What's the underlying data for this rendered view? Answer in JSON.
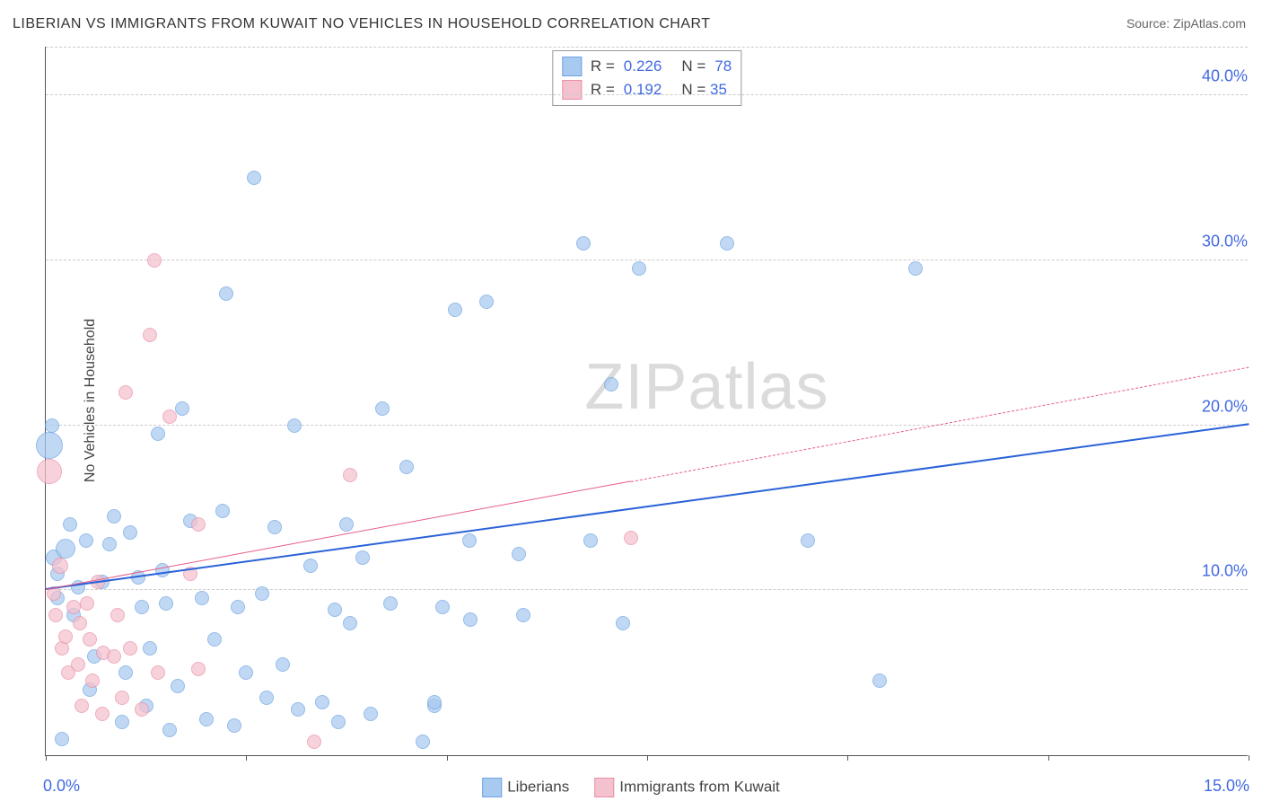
{
  "title": "LIBERIAN VS IMMIGRANTS FROM KUWAIT NO VEHICLES IN HOUSEHOLD CORRELATION CHART",
  "source_prefix": "Source: ",
  "source_name": "ZipAtlas.com",
  "yaxis_label": "No Vehicles in Household",
  "watermark_a": "ZIP",
  "watermark_b": "atlas",
  "chart": {
    "type": "scatter",
    "xlim": [
      0,
      15
    ],
    "ylim": [
      0,
      43
    ],
    "yticks": [
      10,
      20,
      30,
      40
    ],
    "ytick_labels": [
      "10.0%",
      "20.0%",
      "30.0%",
      "40.0%"
    ],
    "xticks": [
      0,
      2.5,
      5,
      7.5,
      10,
      12.5,
      15
    ],
    "x_start_label": "0.0%",
    "x_end_label": "15.0%",
    "grid_color": "#cccccc",
    "axis_color": "#555555",
    "background_color": "#ffffff",
    "series": [
      {
        "name": "Liberians",
        "fill": "#a8caf0",
        "stroke": "#6ea3e0",
        "line_color": "#2a62d8",
        "line_width": 2.4,
        "opacity": 0.72,
        "R": "0.226",
        "N": "78",
        "regression": {
          "x1": 0,
          "y1": 10,
          "x2": 15,
          "y2": 20,
          "solid_until_x": 15
        },
        "points": [
          {
            "x": 0.05,
            "y": 18.8,
            "r": 15
          },
          {
            "x": 0.08,
            "y": 20.0,
            "r": 8
          },
          {
            "x": 0.1,
            "y": 12.0,
            "r": 9
          },
          {
            "x": 0.15,
            "y": 11.0,
            "r": 8
          },
          {
            "x": 0.15,
            "y": 9.5,
            "r": 8
          },
          {
            "x": 0.2,
            "y": 1.0,
            "r": 8
          },
          {
            "x": 0.25,
            "y": 12.5,
            "r": 11
          },
          {
            "x": 0.3,
            "y": 14.0,
            "r": 8
          },
          {
            "x": 0.35,
            "y": 8.5,
            "r": 8
          },
          {
            "x": 0.4,
            "y": 10.2,
            "r": 8
          },
          {
            "x": 0.5,
            "y": 13.0,
            "r": 8
          },
          {
            "x": 0.55,
            "y": 4.0,
            "r": 8
          },
          {
            "x": 0.6,
            "y": 6.0,
            "r": 8
          },
          {
            "x": 0.7,
            "y": 10.5,
            "r": 8
          },
          {
            "x": 0.8,
            "y": 12.8,
            "r": 8
          },
          {
            "x": 0.85,
            "y": 14.5,
            "r": 8
          },
          {
            "x": 0.95,
            "y": 2.0,
            "r": 8
          },
          {
            "x": 1.0,
            "y": 5.0,
            "r": 8
          },
          {
            "x": 1.05,
            "y": 13.5,
            "r": 8
          },
          {
            "x": 1.15,
            "y": 10.8,
            "r": 8
          },
          {
            "x": 1.2,
            "y": 9.0,
            "r": 8
          },
          {
            "x": 1.25,
            "y": 3.0,
            "r": 8
          },
          {
            "x": 1.3,
            "y": 6.5,
            "r": 8
          },
          {
            "x": 1.4,
            "y": 19.5,
            "r": 8
          },
          {
            "x": 1.45,
            "y": 11.2,
            "r": 8
          },
          {
            "x": 1.5,
            "y": 9.2,
            "r": 8
          },
          {
            "x": 1.55,
            "y": 1.5,
            "r": 8
          },
          {
            "x": 1.65,
            "y": 4.2,
            "r": 8
          },
          {
            "x": 1.7,
            "y": 21.0,
            "r": 8
          },
          {
            "x": 1.8,
            "y": 14.2,
            "r": 8
          },
          {
            "x": 1.95,
            "y": 9.5,
            "r": 8
          },
          {
            "x": 2.0,
            "y": 2.2,
            "r": 8
          },
          {
            "x": 2.1,
            "y": 7.0,
            "r": 8
          },
          {
            "x": 2.2,
            "y": 14.8,
            "r": 8
          },
          {
            "x": 2.25,
            "y": 28.0,
            "r": 8
          },
          {
            "x": 2.35,
            "y": 1.8,
            "r": 8
          },
          {
            "x": 2.4,
            "y": 9.0,
            "r": 8
          },
          {
            "x": 2.5,
            "y": 5.0,
            "r": 8
          },
          {
            "x": 2.6,
            "y": 35.0,
            "r": 8
          },
          {
            "x": 2.7,
            "y": 9.8,
            "r": 8
          },
          {
            "x": 2.75,
            "y": 3.5,
            "r": 8
          },
          {
            "x": 2.85,
            "y": 13.8,
            "r": 8
          },
          {
            "x": 2.95,
            "y": 5.5,
            "r": 8
          },
          {
            "x": 3.1,
            "y": 20.0,
            "r": 8
          },
          {
            "x": 3.15,
            "y": 2.8,
            "r": 8
          },
          {
            "x": 3.3,
            "y": 11.5,
            "r": 8
          },
          {
            "x": 3.45,
            "y": 3.2,
            "r": 8
          },
          {
            "x": 3.6,
            "y": 8.8,
            "r": 8
          },
          {
            "x": 3.65,
            "y": 2.0,
            "r": 8
          },
          {
            "x": 3.75,
            "y": 14.0,
            "r": 8
          },
          {
            "x": 3.8,
            "y": 8.0,
            "r": 8
          },
          {
            "x": 3.95,
            "y": 12.0,
            "r": 8
          },
          {
            "x": 4.05,
            "y": 2.5,
            "r": 8
          },
          {
            "x": 4.2,
            "y": 21.0,
            "r": 8
          },
          {
            "x": 4.3,
            "y": 9.2,
            "r": 8
          },
          {
            "x": 4.5,
            "y": 17.5,
            "r": 8
          },
          {
            "x": 4.7,
            "y": 0.8,
            "r": 8
          },
          {
            "x": 4.85,
            "y": 3.0,
            "r": 8
          },
          {
            "x": 4.85,
            "y": 3.2,
            "r": 8
          },
          {
            "x": 4.95,
            "y": 9.0,
            "r": 8
          },
          {
            "x": 5.1,
            "y": 27.0,
            "r": 8
          },
          {
            "x": 5.28,
            "y": 13.0,
            "r": 8
          },
          {
            "x": 5.3,
            "y": 8.2,
            "r": 8
          },
          {
            "x": 5.5,
            "y": 27.5,
            "r": 8
          },
          {
            "x": 5.9,
            "y": 12.2,
            "r": 8
          },
          {
            "x": 5.95,
            "y": 8.5,
            "r": 8
          },
          {
            "x": 6.7,
            "y": 31.0,
            "r": 8
          },
          {
            "x": 6.8,
            "y": 13.0,
            "r": 8
          },
          {
            "x": 7.05,
            "y": 22.5,
            "r": 8
          },
          {
            "x": 7.2,
            "y": 8.0,
            "r": 8
          },
          {
            "x": 7.4,
            "y": 29.5,
            "r": 8
          },
          {
            "x": 8.5,
            "y": 31.0,
            "r": 8
          },
          {
            "x": 9.5,
            "y": 13.0,
            "r": 8
          },
          {
            "x": 10.4,
            "y": 4.5,
            "r": 8
          },
          {
            "x": 10.85,
            "y": 29.5,
            "r": 8
          }
        ]
      },
      {
        "name": "Immigrants from Kuwait",
        "fill": "#f4c1ce",
        "stroke": "#e98fa8",
        "line_color": "#e75d86",
        "line_width": 1.8,
        "opacity": 0.72,
        "R": "0.192",
        "N": "35",
        "regression": {
          "x1": 0,
          "y1": 10,
          "x2": 15,
          "y2": 23.5,
          "solid_until_x": 7.3
        },
        "points": [
          {
            "x": 0.05,
            "y": 17.2,
            "r": 14
          },
          {
            "x": 0.1,
            "y": 9.8,
            "r": 8
          },
          {
            "x": 0.12,
            "y": 8.5,
            "r": 8
          },
          {
            "x": 0.18,
            "y": 11.5,
            "r": 9
          },
          {
            "x": 0.2,
            "y": 6.5,
            "r": 8
          },
          {
            "x": 0.25,
            "y": 7.2,
            "r": 8
          },
          {
            "x": 0.28,
            "y": 5.0,
            "r": 8
          },
          {
            "x": 0.35,
            "y": 9.0,
            "r": 8
          },
          {
            "x": 0.4,
            "y": 5.5,
            "r": 8
          },
          {
            "x": 0.42,
            "y": 8.0,
            "r": 8
          },
          {
            "x": 0.45,
            "y": 3.0,
            "r": 8
          },
          {
            "x": 0.52,
            "y": 9.2,
            "r": 8
          },
          {
            "x": 0.55,
            "y": 7.0,
            "r": 8
          },
          {
            "x": 0.58,
            "y": 4.5,
            "r": 8
          },
          {
            "x": 0.65,
            "y": 10.5,
            "r": 8
          },
          {
            "x": 0.7,
            "y": 2.5,
            "r": 8
          },
          {
            "x": 0.72,
            "y": 6.2,
            "r": 8
          },
          {
            "x": 0.85,
            "y": 6.0,
            "r": 8
          },
          {
            "x": 0.9,
            "y": 8.5,
            "r": 8
          },
          {
            "x": 0.95,
            "y": 3.5,
            "r": 8
          },
          {
            "x": 1.0,
            "y": 22.0,
            "r": 8
          },
          {
            "x": 1.05,
            "y": 6.5,
            "r": 8
          },
          {
            "x": 1.2,
            "y": 2.8,
            "r": 8
          },
          {
            "x": 1.3,
            "y": 25.5,
            "r": 8
          },
          {
            "x": 1.35,
            "y": 30.0,
            "r": 8
          },
          {
            "x": 1.4,
            "y": 5.0,
            "r": 8
          },
          {
            "x": 1.55,
            "y": 20.5,
            "r": 8
          },
          {
            "x": 1.8,
            "y": 11.0,
            "r": 8
          },
          {
            "x": 1.9,
            "y": 14.0,
            "r": 8
          },
          {
            "x": 1.9,
            "y": 5.2,
            "r": 8
          },
          {
            "x": 3.35,
            "y": 0.8,
            "r": 8
          },
          {
            "x": 3.8,
            "y": 17.0,
            "r": 8
          },
          {
            "x": 7.3,
            "y": 13.2,
            "r": 8
          }
        ]
      }
    ]
  },
  "legend_top": {
    "r_label": "R =",
    "n_label": "N ="
  },
  "legend_bottom": [
    {
      "label": "Liberians",
      "color": "#a8caf0",
      "border": "#6ea3e0"
    },
    {
      "label": "Immigrants from Kuwait",
      "color": "#f4c1ce",
      "border": "#e98fa8"
    }
  ]
}
